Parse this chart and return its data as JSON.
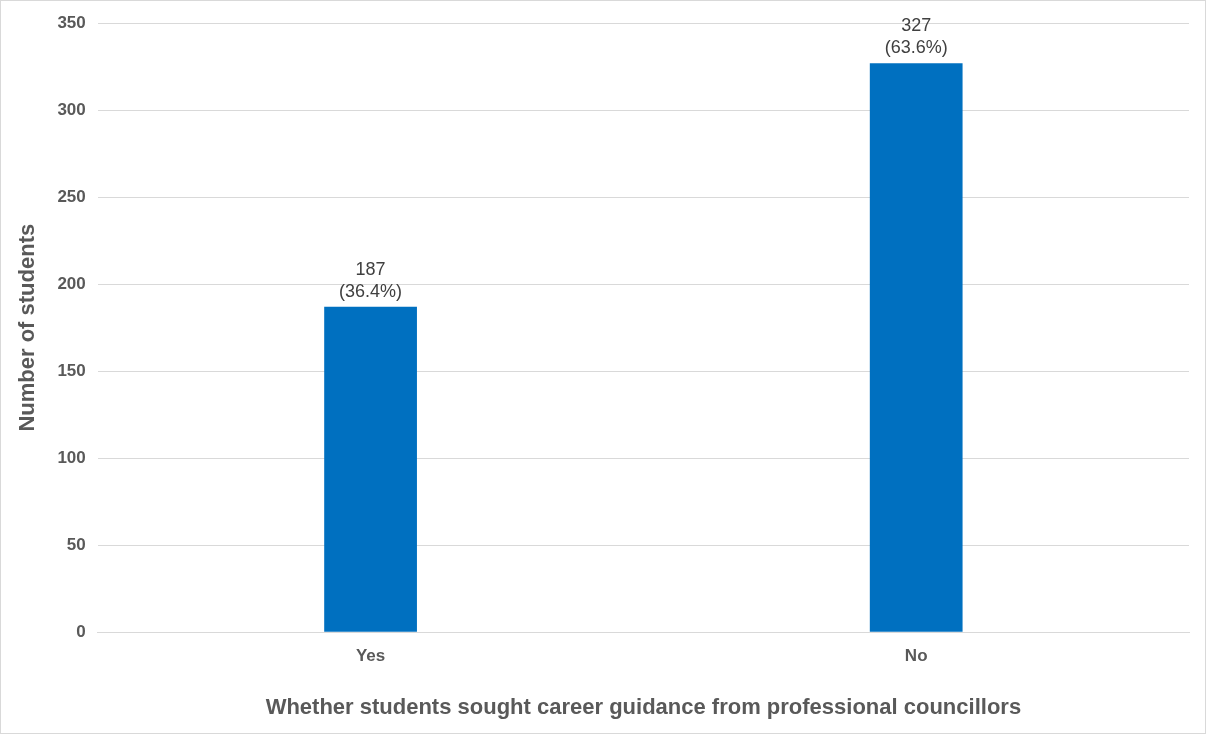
{
  "chart_data": {
    "type": "bar",
    "xlabel": "Whether students sought career guidance from professional councillors",
    "ylabel": "Number of students",
    "categories": [
      "Yes",
      "No"
    ],
    "values": [
      187,
      327
    ],
    "value_labels": [
      "187\n(36.4%)",
      "327\n(63.6%)"
    ],
    "color": "#0070c0",
    "ylim": [
      0,
      350
    ],
    "yticks": [
      0,
      50,
      100,
      150,
      200,
      250,
      300,
      350
    ],
    "grid": "y",
    "legend": false
  }
}
